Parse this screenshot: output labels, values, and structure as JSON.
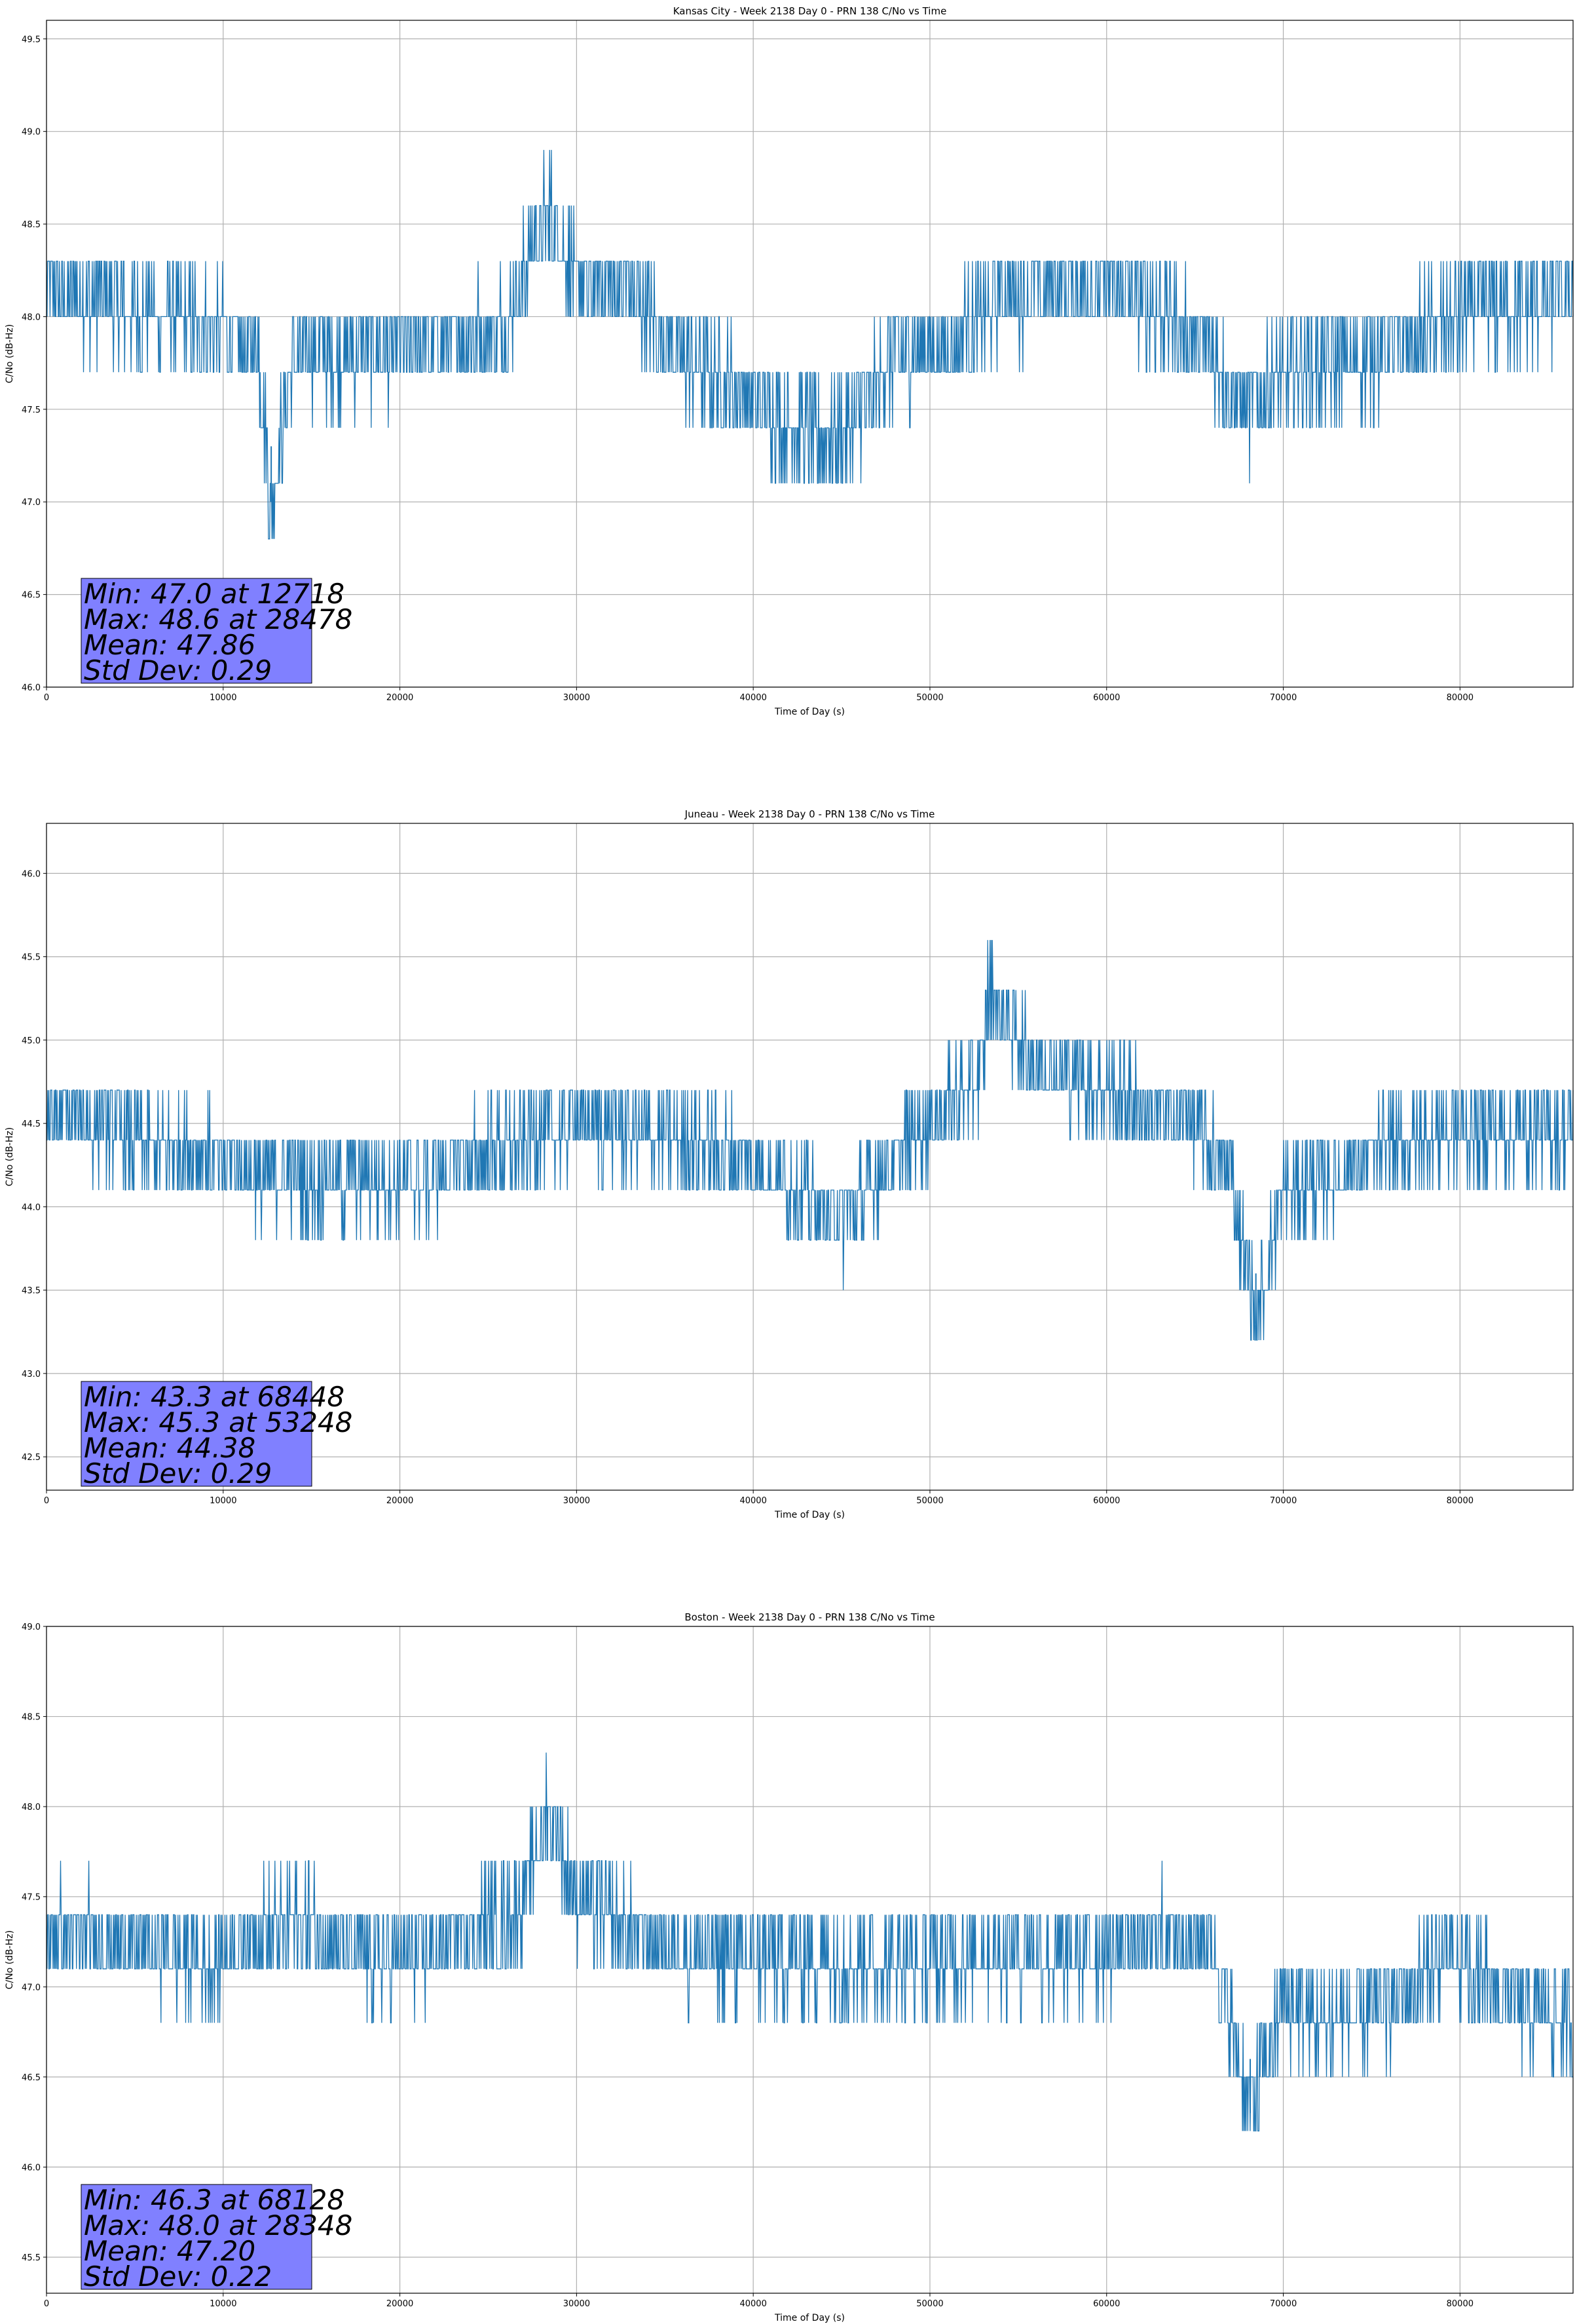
{
  "chart_data": [
    {
      "type": "line",
      "title": "Kansas City - Week 2138 Day 0 - PRN 138 C/No vs Time",
      "xlabel": "Time of Day (s)",
      "ylabel": "C/No (dB-Hz)",
      "xlim": [
        0,
        86400
      ],
      "ylim": [
        46.0,
        49.6
      ],
      "xticks": [
        0,
        10000,
        20000,
        30000,
        40000,
        50000,
        60000,
        70000,
        80000
      ],
      "yticks": [
        "46.0",
        "46.5",
        "47.0",
        "47.5",
        "48.0",
        "48.5",
        "49.0",
        "49.5"
      ],
      "grid": true,
      "color": "#1f77b4",
      "series": [
        {
          "x": [
            0,
            3000,
            6000,
            9000,
            12000,
            12718,
            14000,
            18000,
            22000,
            26000,
            28478,
            30000,
            33000,
            36000,
            39000,
            42000,
            44000,
            46000,
            48000,
            51000,
            54000,
            57000,
            60000,
            63000,
            66000,
            68000,
            70000,
            73000,
            76000,
            79000,
            82000,
            86400
          ],
          "y": [
            48.15,
            48.1,
            48.0,
            47.95,
            47.8,
            47.0,
            47.8,
            47.8,
            47.85,
            47.95,
            48.6,
            48.15,
            48.15,
            47.75,
            47.6,
            47.45,
            47.3,
            47.45,
            47.8,
            47.85,
            48.1,
            48.15,
            48.15,
            48.05,
            47.8,
            47.5,
            47.7,
            47.75,
            47.8,
            47.95,
            48.05,
            48.1
          ]
        }
      ],
      "stats": [
        "Min: 47.0 at 12718",
        "Max: 48.6 at 28478",
        "Mean: 47.86",
        "Std Dev: 0.29"
      ]
    },
    {
      "type": "line",
      "title": "Juneau - Week 2138 Day 0 - PRN 138 C/No vs Time",
      "xlabel": "Time of Day (s)",
      "ylabel": "C/No (dB-Hz)",
      "xlim": [
        0,
        86400
      ],
      "ylim": [
        42.3,
        46.3
      ],
      "xticks": [
        0,
        10000,
        20000,
        30000,
        40000,
        50000,
        60000,
        70000,
        80000
      ],
      "yticks": [
        "42.5",
        "43.0",
        "43.5",
        "44.0",
        "44.5",
        "45.0",
        "45.5",
        "46.0"
      ],
      "grid": true,
      "color": "#1f77b4",
      "series": [
        {
          "x": [
            0,
            3000,
            6000,
            9000,
            12000,
            15000,
            18000,
            21000,
            24000,
            27000,
            30000,
            33000,
            36000,
            39000,
            42000,
            45000,
            48000,
            50000,
            53000,
            53248,
            56000,
            59000,
            62000,
            65000,
            67000,
            68448,
            70000,
            73000,
            76000,
            79000,
            82000,
            86400
          ],
          "y": [
            44.55,
            44.5,
            44.35,
            44.3,
            44.2,
            44.15,
            44.15,
            44.15,
            44.3,
            44.4,
            44.5,
            44.45,
            44.4,
            44.3,
            44.15,
            43.9,
            44.3,
            44.5,
            44.8,
            45.3,
            44.85,
            44.75,
            44.6,
            44.5,
            44.2,
            43.3,
            44.1,
            44.2,
            44.35,
            44.45,
            44.45,
            44.45
          ]
        }
      ],
      "stats": [
        "Min: 43.3 at 68448",
        "Max: 45.3 at 53248",
        "Mean: 44.38",
        "Std Dev: 0.29"
      ]
    },
    {
      "type": "line",
      "title": "Boston - Week 2138 Day 0 - PRN 138 C/No vs Time",
      "xlabel": "Time of Day (s)",
      "ylabel": "C/No (dB-Hz)",
      "xlim": [
        0,
        86400
      ],
      "ylim": [
        45.3,
        49.0
      ],
      "xticks": [
        0,
        10000,
        20000,
        30000,
        40000,
        50000,
        60000,
        70000,
        80000
      ],
      "yticks": [
        "45.5",
        "46.0",
        "46.5",
        "47.0",
        "47.5",
        "48.0",
        "48.5",
        "49.0"
      ],
      "grid": true,
      "color": "#1f77b4",
      "series": [
        {
          "x": [
            0,
            3000,
            6000,
            9000,
            12000,
            15000,
            18000,
            21000,
            24000,
            27000,
            28348,
            30000,
            33000,
            36000,
            39000,
            42000,
            45000,
            48000,
            51000,
            54000,
            57000,
            60000,
            63000,
            66000,
            68128,
            70000,
            73000,
            76000,
            79000,
            82000,
            84000,
            86400
          ],
          "y": [
            47.3,
            47.3,
            47.2,
            47.15,
            47.3,
            47.35,
            47.15,
            47.15,
            47.3,
            47.45,
            48.0,
            47.5,
            47.3,
            47.2,
            47.15,
            47.15,
            47.15,
            47.15,
            47.15,
            47.2,
            47.15,
            47.2,
            47.3,
            47.25,
            46.3,
            46.9,
            46.8,
            46.9,
            47.15,
            47.0,
            46.85,
            46.8
          ]
        }
      ],
      "stats": [
        "Min: 46.3 at 68128",
        "Max: 48.0 at 28348",
        "Mean: 47.20",
        "Std Dev: 0.22"
      ]
    }
  ]
}
